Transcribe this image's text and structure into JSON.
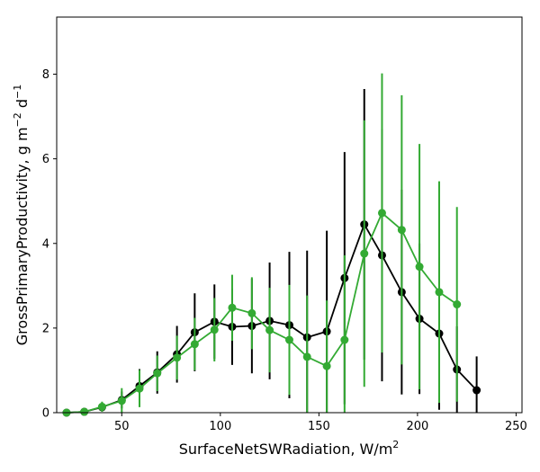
{
  "chart_data": {
    "type": "line",
    "title": "",
    "xlabel": "SurfaceNetSWRadiation,  W/m",
    "xlabel_sup": "2",
    "ylabel": "GrossPrimaryProductivity,  g m",
    "ylabel_sup1": "−2",
    "ylabel_mid": " d",
    "ylabel_sup2": "−1",
    "xlim": [
      17,
      253
    ],
    "ylim": [
      0,
      9.35
    ],
    "xticks": [
      50,
      100,
      150,
      200,
      250
    ],
    "yticks": [
      0,
      2,
      4,
      6,
      8
    ],
    "grid": false,
    "legend": "none",
    "series": [
      {
        "color": "#000000",
        "x": [
          22,
          31,
          40,
          50,
          59,
          68,
          78,
          87,
          97,
          106,
          116,
          125,
          135,
          144,
          154,
          163,
          173,
          182,
          192,
          201,
          211,
          220,
          230
        ],
        "y": [
          0.0,
          0.02,
          0.13,
          0.3,
          0.63,
          0.95,
          1.38,
          1.9,
          2.15,
          2.03,
          2.05,
          2.17,
          2.07,
          1.78,
          1.92,
          3.18,
          4.45,
          3.72,
          2.85,
          2.22,
          1.87,
          1.02,
          0.53
        ],
        "err": [
          0.0,
          0.02,
          0.08,
          0.2,
          0.4,
          0.5,
          0.67,
          0.92,
          0.88,
          0.9,
          1.12,
          1.38,
          1.73,
          2.05,
          2.38,
          2.98,
          3.2,
          2.98,
          2.42,
          1.78,
          1.8,
          1.02,
          0.8
        ]
      },
      {
        "color": "#33aa33",
        "x": [
          22,
          31,
          40,
          50,
          59,
          68,
          78,
          87,
          97,
          106,
          116,
          125,
          135,
          144,
          154,
          163,
          173,
          182,
          192,
          201,
          211,
          220
        ],
        "y": [
          0.0,
          0.02,
          0.14,
          0.28,
          0.57,
          0.93,
          1.3,
          1.62,
          1.96,
          2.48,
          2.35,
          1.95,
          1.72,
          1.32,
          1.1,
          1.72,
          3.76,
          4.72,
          4.32,
          3.45,
          2.85,
          2.56
        ],
        "err": [
          0.0,
          0.02,
          0.12,
          0.3,
          0.44,
          0.42,
          0.52,
          0.62,
          0.75,
          0.78,
          0.85,
          1.0,
          1.3,
          1.45,
          1.55,
          2.0,
          3.15,
          3.3,
          3.18,
          2.9,
          2.62,
          2.3
        ]
      }
    ]
  }
}
